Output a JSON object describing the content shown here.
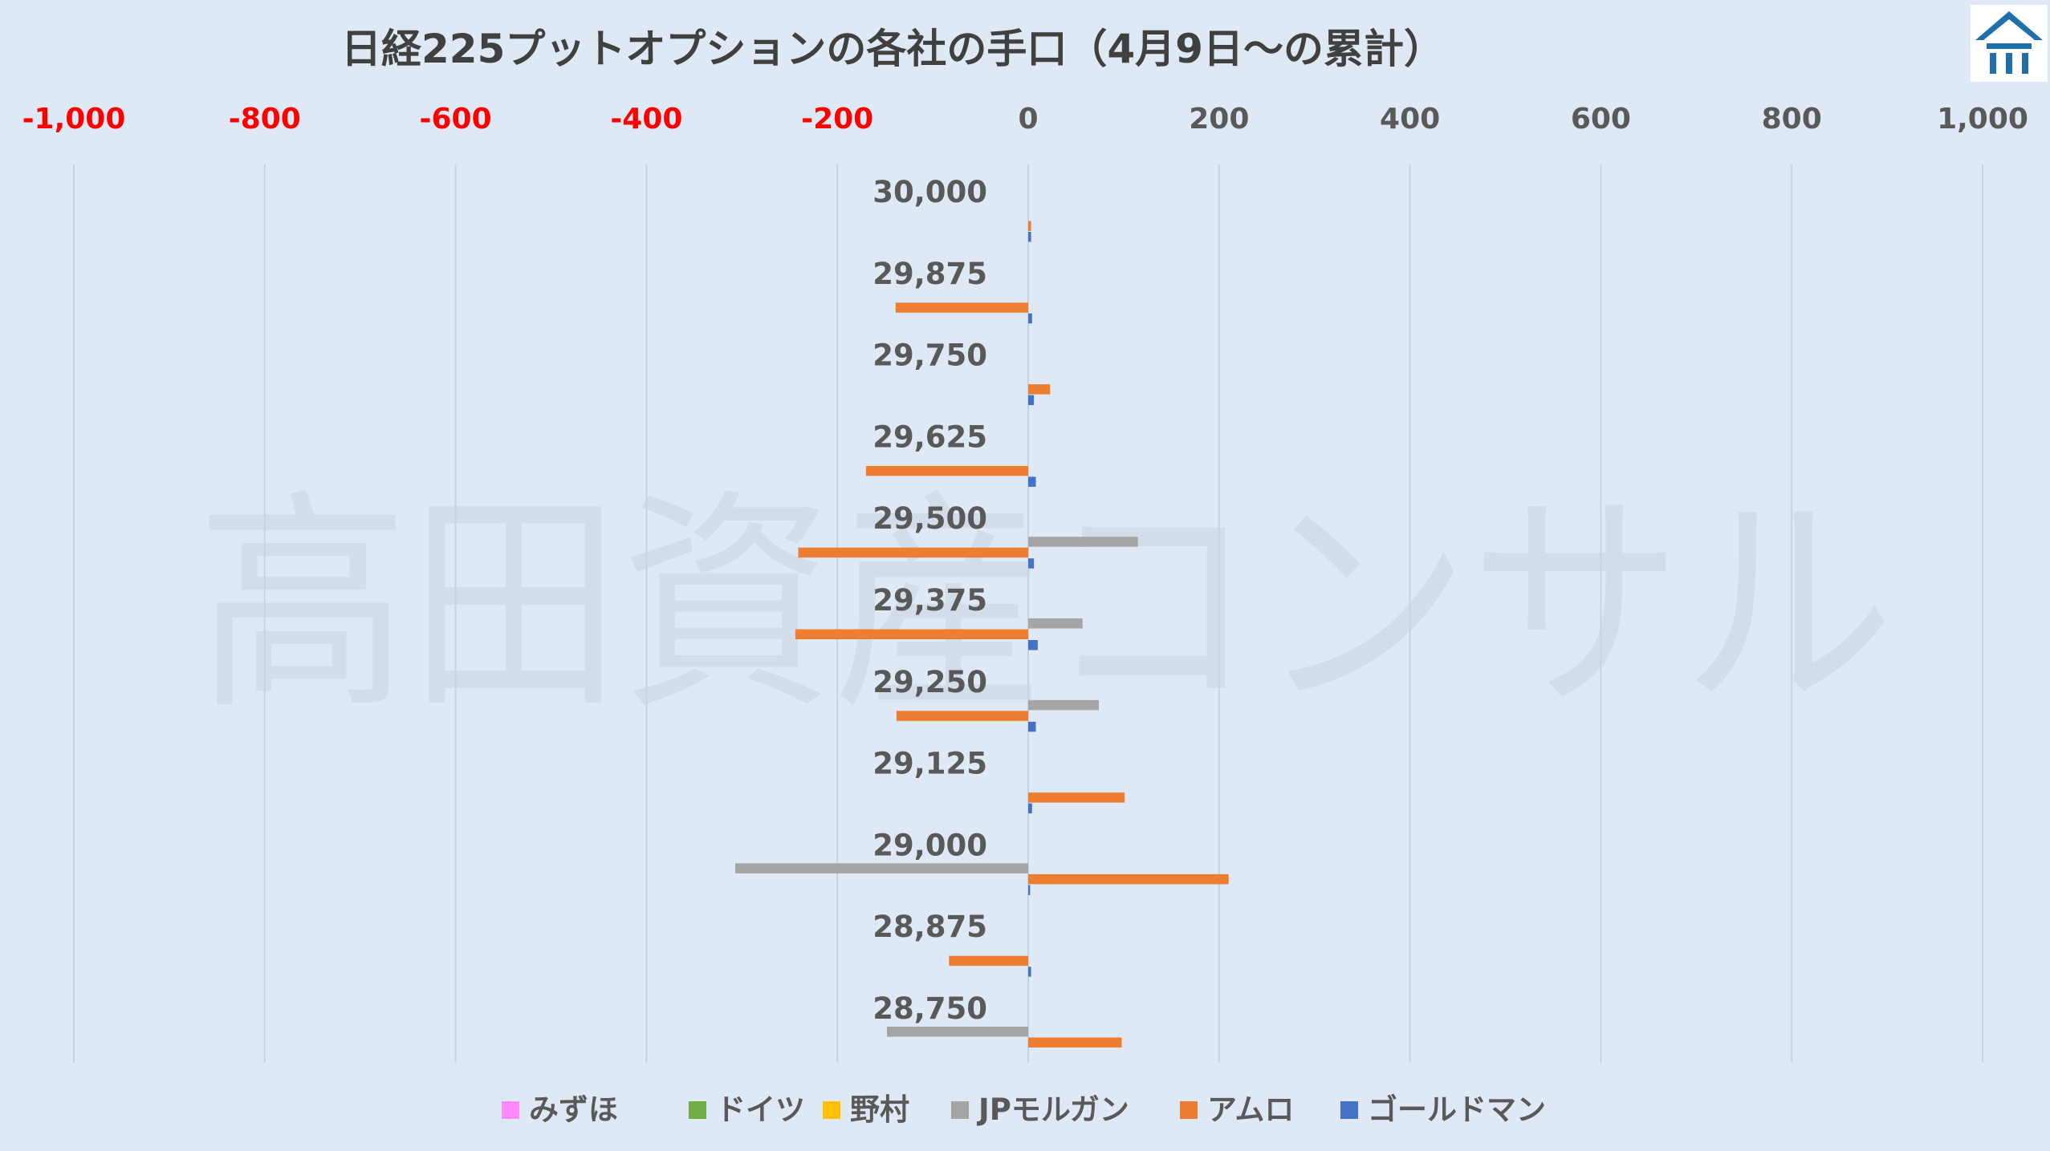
{
  "chart_data": {
    "type": "bar",
    "orientation": "horizontal",
    "title": "日経225プットオプションの各社の手口（4月9日～の累計）",
    "watermark": "高田資産コンサル",
    "xlim": [
      -1000,
      1000
    ],
    "x_ticks": [
      {
        "value": -1000,
        "label": "-1,000"
      },
      {
        "value": -800,
        "label": "-800"
      },
      {
        "value": -600,
        "label": "-600"
      },
      {
        "value": -400,
        "label": "-400"
      },
      {
        "value": -200,
        "label": "-200"
      },
      {
        "value": 0,
        "label": "0"
      },
      {
        "value": 200,
        "label": "200"
      },
      {
        "value": 400,
        "label": "400"
      },
      {
        "value": 600,
        "label": "600"
      },
      {
        "value": 800,
        "label": "800"
      },
      {
        "value": 1000,
        "label": "1,000"
      }
    ],
    "negative_tick_color": "#ff0000",
    "positive_tick_color": "#595959",
    "grid": true,
    "legend_position": "bottom",
    "categories": [
      "30,000",
      "29,875",
      "29,750",
      "29,625",
      "29,500",
      "29,375",
      "29,250",
      "29,125",
      "29,000",
      "28,875",
      "28,750"
    ],
    "series": [
      {
        "name": "みずほ",
        "color": "#ff88ff",
        "values": [
          0,
          0,
          0,
          0,
          0,
          0,
          0,
          0,
          0,
          0,
          0
        ]
      },
      {
        "name": "ドイツ",
        "color": "#70ad47",
        "values": [
          0,
          0,
          0,
          0,
          0,
          0,
          0,
          0,
          0,
          0,
          0
        ]
      },
      {
        "name": "野村",
        "color": "#ffc000",
        "values": [
          0,
          0,
          0,
          0,
          0,
          0,
          0,
          0,
          0,
          0,
          0
        ]
      },
      {
        "name": "JPモルガン",
        "color": "#a5a5a5",
        "values": [
          0,
          0,
          0,
          0,
          115,
          57,
          74,
          0,
          -307,
          0,
          -148
        ]
      },
      {
        "name": "アムロ",
        "color": "#ed7d31",
        "values": [
          3,
          -139,
          23,
          -170,
          -241,
          -244,
          -138,
          101,
          210,
          -83,
          98
        ]
      },
      {
        "name": "ゴールドマン",
        "color": "#4472c4",
        "values": [
          3,
          4,
          6,
          8,
          6,
          10,
          8,
          4,
          2,
          3,
          0
        ]
      }
    ]
  },
  "logo": {
    "name": "corner-logo",
    "color": "#1f6fad"
  }
}
